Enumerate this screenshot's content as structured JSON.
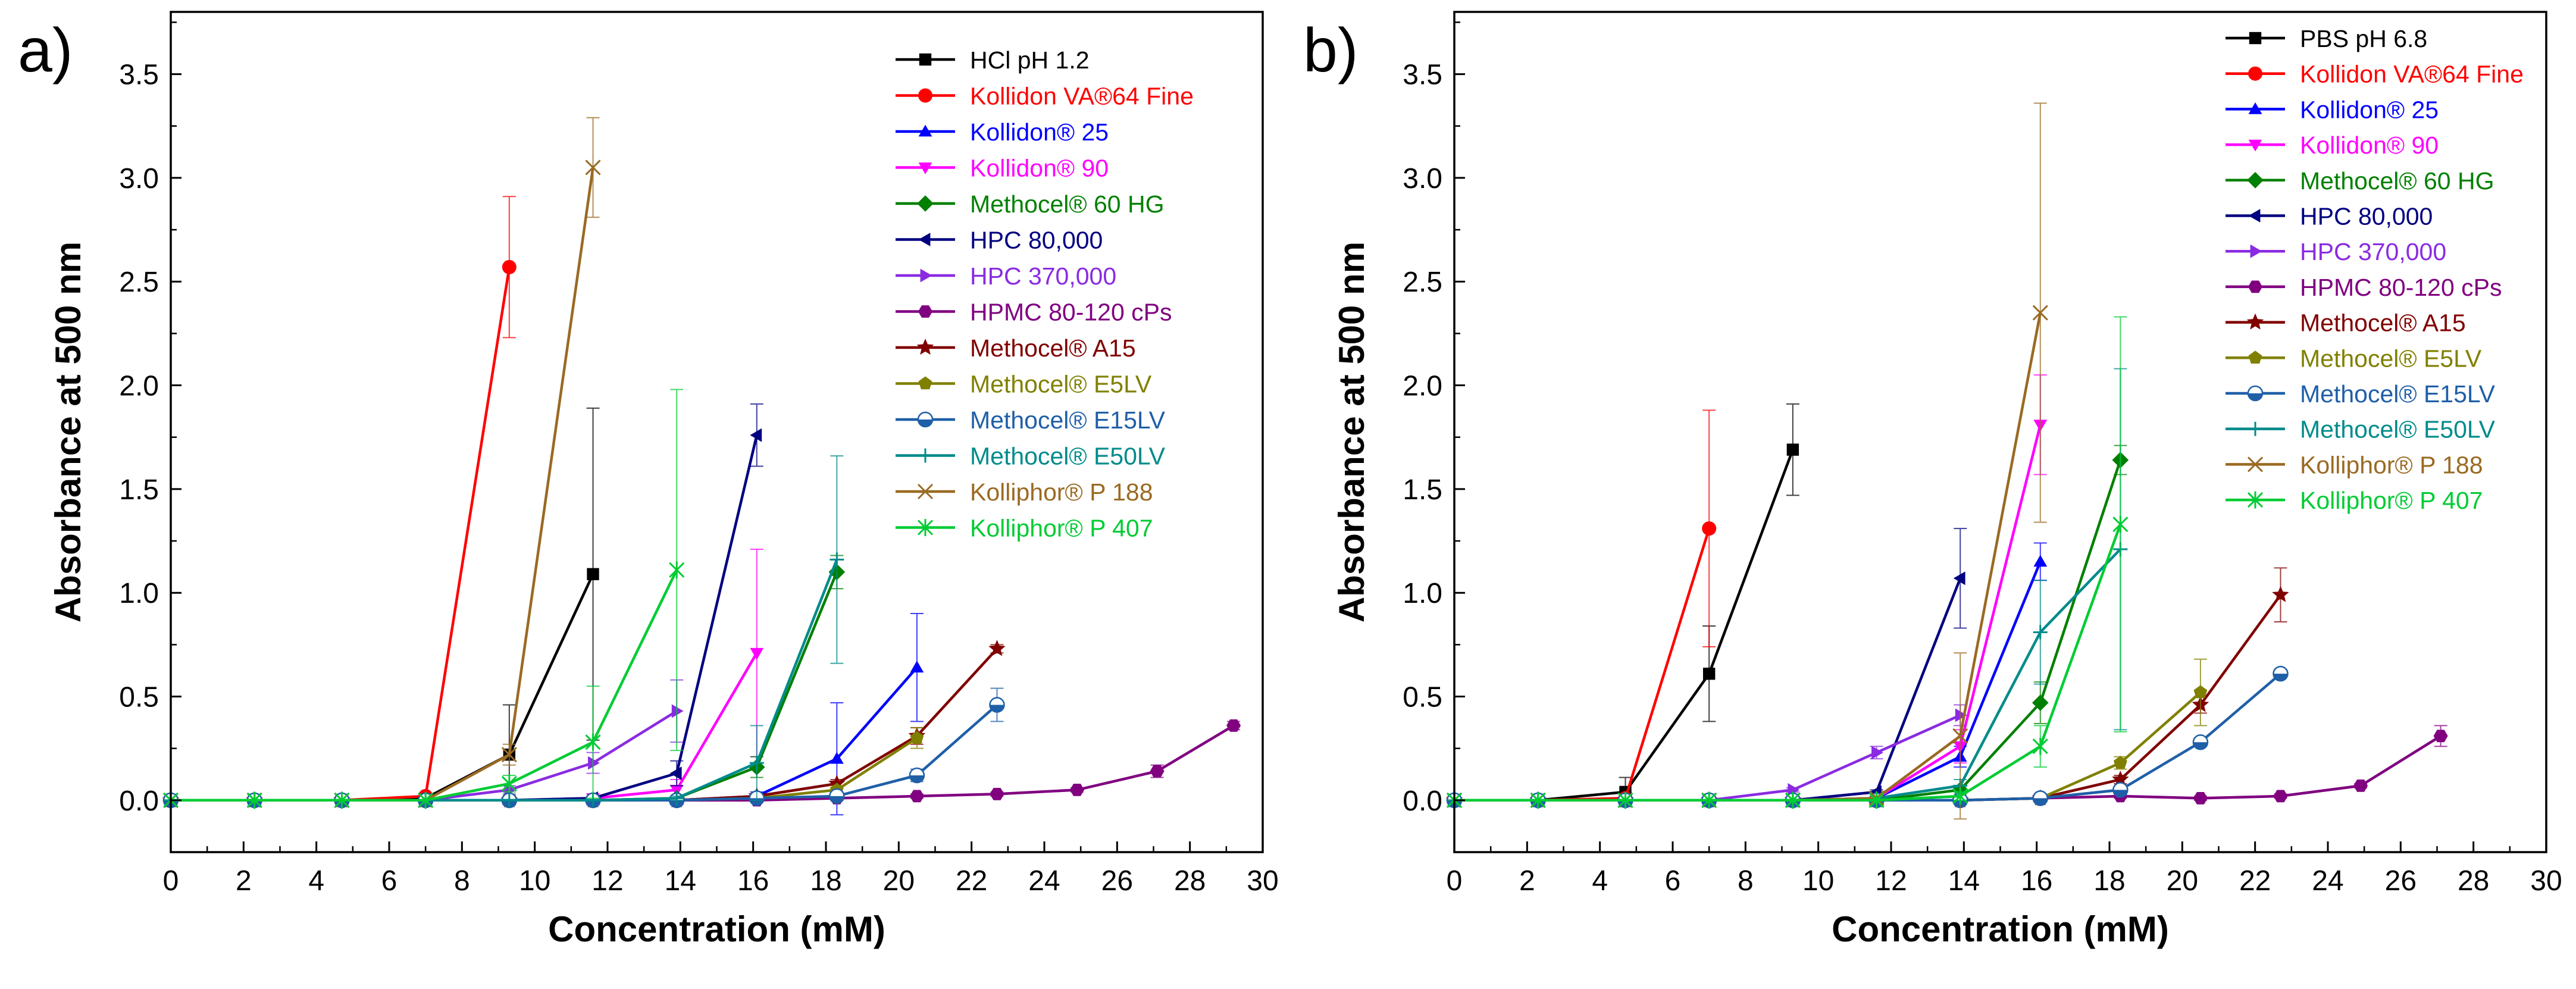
{
  "chart_data": [
    {
      "type": "line",
      "panel_label": "a)",
      "xlabel": "Concentration (mM)",
      "ylabel": "Absorbance at 500 nm",
      "xlim": [
        0,
        30
      ],
      "ylim": [
        -0.25,
        3.8
      ],
      "xticks": [
        0,
        2,
        4,
        6,
        8,
        10,
        12,
        14,
        16,
        18,
        20,
        22,
        24,
        26,
        28,
        30
      ],
      "yticks": [
        0.0,
        0.5,
        1.0,
        1.5,
        2.0,
        2.5,
        3.0,
        3.5
      ],
      "ytick_labels": [
        "0.0",
        "0.5",
        "1.0",
        "1.5",
        "2.0",
        "2.5",
        "3.0",
        "3.5"
      ],
      "grid": false,
      "legend_position": "top-right",
      "series": [
        {
          "name": "HCl pH 1.2",
          "color": "#000000",
          "marker": "square",
          "x": [
            0,
            2.3,
            4.7,
            7.0,
            9.3,
            11.6
          ],
          "y": [
            0,
            0,
            0,
            0.01,
            0.22,
            1.09
          ],
          "err": [
            0,
            0,
            0,
            0.01,
            0.24,
            0.8
          ]
        },
        {
          "name": "Kollidon VA®64 Fine",
          "color": "#ff0000",
          "marker": "circle",
          "x": [
            0,
            2.3,
            4.7,
            7.0,
            9.3
          ],
          "y": [
            0,
            0,
            0,
            0.02,
            2.57
          ],
          "err": [
            0,
            0,
            0,
            0.01,
            0.34
          ]
        },
        {
          "name": "Kollidon® 25",
          "color": "#0000ff",
          "marker": "triangle-up",
          "x": [
            0,
            2.3,
            4.7,
            7.0,
            9.3,
            11.6,
            13.9,
            16.1,
            18.3,
            20.5
          ],
          "y": [
            0,
            0,
            0,
            0,
            0,
            0,
            0,
            0.02,
            0.2,
            0.64
          ],
          "err": [
            0,
            0,
            0,
            0,
            0,
            0,
            0,
            0.02,
            0.27,
            0.26
          ]
        },
        {
          "name": "Kollidon® 90",
          "color": "#ff00ff",
          "marker": "triangle-down",
          "x": [
            0,
            2.3,
            4.7,
            7.0,
            9.3,
            11.6,
            13.9,
            16.1
          ],
          "y": [
            0,
            0,
            0,
            0,
            0,
            0.01,
            0.05,
            0.71
          ],
          "err": [
            0,
            0,
            0,
            0,
            0,
            0.01,
            0.05,
            0.5
          ]
        },
        {
          "name": "Methocel® 60 HG",
          "color": "#008000",
          "marker": "diamond",
          "x": [
            0,
            2.3,
            4.7,
            7.0,
            9.3,
            11.6,
            13.9,
            16.1,
            18.3
          ],
          "y": [
            0,
            0,
            0,
            0,
            0,
            0,
            0.01,
            0.16,
            1.1
          ],
          "err": [
            0,
            0,
            0,
            0,
            0,
            0,
            0.01,
            0.05,
            0.08
          ]
        },
        {
          "name": "HPC 80,000",
          "color": "#000080",
          "marker": "triangle-left",
          "x": [
            0,
            2.3,
            4.7,
            7.0,
            9.3,
            11.6,
            13.9,
            16.1
          ],
          "y": [
            0,
            0,
            0,
            0,
            0,
            0.01,
            0.13,
            1.76
          ],
          "err": [
            0,
            0,
            0,
            0,
            0,
            0.01,
            0.06,
            0.15
          ]
        },
        {
          "name": "HPC 370,000",
          "color": "#8a2be2",
          "marker": "triangle-right",
          "x": [
            0,
            2.3,
            4.7,
            7.0,
            9.3,
            11.6,
            13.9
          ],
          "y": [
            0,
            0,
            0,
            0,
            0.05,
            0.18,
            0.43
          ],
          "err": [
            0,
            0,
            0,
            0,
            0.02,
            0.05,
            0.15
          ]
        },
        {
          "name": "HPMC 80-120 cPs",
          "color": "#800080",
          "marker": "hexagon",
          "x": [
            0,
            2.3,
            4.7,
            7.0,
            9.3,
            11.6,
            13.9,
            16.1,
            18.3,
            20.5,
            22.7,
            24.9,
            27.1,
            29.2
          ],
          "y": [
            0,
            0,
            0,
            0,
            0,
            0,
            0,
            0,
            0.01,
            0.02,
            0.03,
            0.05,
            0.14,
            0.36
          ],
          "err": [
            0,
            0,
            0,
            0,
            0,
            0,
            0,
            0,
            0.01,
            0.01,
            0.01,
            0.01,
            0.03,
            0.02
          ]
        },
        {
          "name": "Methocel® A15",
          "color": "#800000",
          "marker": "star",
          "x": [
            0,
            2.3,
            4.7,
            7.0,
            9.3,
            11.6,
            13.9,
            16.1,
            18.3,
            20.5,
            22.7
          ],
          "y": [
            0,
            0,
            0,
            0,
            0,
            0,
            0,
            0.02,
            0.08,
            0.31,
            0.73
          ],
          "err": [
            0,
            0,
            0,
            0,
            0,
            0,
            0,
            0.01,
            0.02,
            0.04,
            0.02
          ]
        },
        {
          "name": "Methocel® E5LV",
          "color": "#808000",
          "marker": "pentagon",
          "x": [
            0,
            2.3,
            4.7,
            7.0,
            9.3,
            11.6,
            13.9,
            16.1,
            18.3,
            20.5
          ],
          "y": [
            0,
            0,
            0,
            0,
            0,
            0,
            0,
            0.01,
            0.05,
            0.3
          ],
          "err": [
            0,
            0,
            0,
            0,
            0,
            0,
            0,
            0.01,
            0.02,
            0.05
          ]
        },
        {
          "name": "Methocel® E15LV",
          "color": "#1f5fa8",
          "marker": "half-circle",
          "x": [
            0,
            2.3,
            4.7,
            7.0,
            9.3,
            11.6,
            13.9,
            16.1,
            18.3,
            20.5,
            22.7
          ],
          "y": [
            0,
            0,
            0,
            0,
            0,
            0,
            0,
            0.01,
            0.02,
            0.12,
            0.46
          ],
          "err": [
            0,
            0,
            0,
            0,
            0,
            0,
            0,
            0.01,
            0.01,
            0.03,
            0.08
          ]
        },
        {
          "name": "Methocel® E50LV",
          "color": "#008b8b",
          "marker": "plus",
          "x": [
            0,
            2.3,
            4.7,
            7.0,
            9.3,
            11.6,
            13.9,
            16.1,
            18.3
          ],
          "y": [
            0,
            0,
            0,
            0,
            0,
            0,
            0.01,
            0.18,
            1.16
          ],
          "err": [
            0,
            0,
            0,
            0,
            0,
            0,
            0.01,
            0.18,
            0.5
          ]
        },
        {
          "name": "Kolliphor® P 188",
          "color": "#9a6a22",
          "marker": "x",
          "x": [
            0,
            2.3,
            4.7,
            7.0,
            9.3,
            11.6
          ],
          "y": [
            0,
            0,
            0,
            0,
            0.22,
            3.05
          ],
          "err": [
            0,
            0,
            0,
            0,
            0.05,
            0.24
          ]
        },
        {
          "name": "Kolliphor® P 407",
          "color": "#00cc33",
          "marker": "asterisk",
          "x": [
            0,
            2.3,
            4.7,
            7.0,
            9.3,
            11.6,
            13.9
          ],
          "y": [
            0,
            0,
            0,
            0,
            0.08,
            0.28,
            1.11
          ],
          "err": [
            0,
            0,
            0,
            0,
            0.04,
            0.27,
            0.87
          ]
        }
      ]
    },
    {
      "type": "line",
      "panel_label": "b)",
      "xlabel": "Concentration (mM)",
      "ylabel": "Absorbance at 500 nm",
      "xlim": [
        0,
        30
      ],
      "ylim": [
        -0.25,
        3.8
      ],
      "xticks": [
        0,
        2,
        4,
        6,
        8,
        10,
        12,
        14,
        16,
        18,
        20,
        22,
        24,
        26,
        28,
        30
      ],
      "yticks": [
        0.0,
        0.5,
        1.0,
        1.5,
        2.0,
        2.5,
        3.0,
        3.5
      ],
      "ytick_labels": [
        "0.0",
        "0.5",
        "1.0",
        "1.5",
        "2.0",
        "2.5",
        "3.0",
        "3.5"
      ],
      "grid": false,
      "legend_position": "top-right",
      "series": [
        {
          "name": "PBS pH 6.8",
          "color": "#000000",
          "marker": "square",
          "x": [
            0,
            2.3,
            4.7,
            7.0,
            9.3
          ],
          "y": [
            0,
            0,
            0.04,
            0.61,
            1.69
          ],
          "err": [
            0,
            0,
            0.07,
            0.23,
            0.22
          ]
        },
        {
          "name": "Kollidon VA®64 Fine",
          "color": "#ff0000",
          "marker": "circle",
          "x": [
            0,
            2.3,
            4.7,
            7.0
          ],
          "y": [
            0,
            0,
            0.01,
            1.31
          ],
          "err": [
            0,
            0,
            0.01,
            0.57
          ]
        },
        {
          "name": "Kollidon® 25",
          "color": "#0000ff",
          "marker": "triangle-up",
          "x": [
            0,
            2.3,
            4.7,
            7.0,
            9.3,
            11.6,
            13.9,
            16.1
          ],
          "y": [
            0,
            0,
            0,
            0,
            0,
            0.01,
            0.21,
            1.15
          ],
          "err": [
            0,
            0,
            0,
            0,
            0,
            0.01,
            0.05,
            0.09
          ]
        },
        {
          "name": "Kollidon® 90",
          "color": "#ff00ff",
          "marker": "triangle-down",
          "x": [
            0,
            2.3,
            4.7,
            7.0,
            9.3,
            11.6,
            13.9,
            16.1
          ],
          "y": [
            0,
            0,
            0,
            0,
            0,
            0.01,
            0.26,
            1.81
          ],
          "err": [
            0,
            0,
            0,
            0,
            0,
            0.01,
            0.08,
            0.24
          ]
        },
        {
          "name": "Methocel® 60 HG",
          "color": "#008000",
          "marker": "diamond",
          "x": [
            0,
            2.3,
            4.7,
            7.0,
            9.3,
            11.6,
            13.9,
            16.1,
            18.3
          ],
          "y": [
            0,
            0,
            0,
            0,
            0,
            0,
            0.05,
            0.47,
            1.64
          ],
          "err": [
            0,
            0,
            0,
            0,
            0,
            0,
            0.02,
            0.1,
            0.07
          ]
        },
        {
          "name": "HPC 80,000",
          "color": "#000080",
          "marker": "triangle-left",
          "x": [
            0,
            2.3,
            4.7,
            7.0,
            9.3,
            11.6,
            13.9
          ],
          "y": [
            0,
            0,
            0,
            0,
            0,
            0.04,
            1.07
          ],
          "err": [
            0,
            0,
            0,
            0,
            0,
            0.01,
            0.24
          ]
        },
        {
          "name": "HPC 370,000",
          "color": "#8a2be2",
          "marker": "triangle-right",
          "x": [
            0,
            2.3,
            4.7,
            7.0,
            9.3,
            11.6,
            13.9
          ],
          "y": [
            0,
            0,
            0,
            0,
            0.05,
            0.23,
            0.41
          ],
          "err": [
            0,
            0,
            0,
            0,
            0.01,
            0.03,
            0.05
          ]
        },
        {
          "name": "HPMC 80-120 cPs",
          "color": "#800080",
          "marker": "hexagon",
          "x": [
            0,
            2.3,
            4.7,
            7.0,
            9.3,
            11.6,
            13.9,
            16.1,
            18.3,
            20.5,
            22.7,
            24.9,
            27.1
          ],
          "y": [
            0,
            0,
            0,
            0,
            0,
            0,
            0,
            0.01,
            0.02,
            0.01,
            0.02,
            0.07,
            0.31
          ],
          "err": [
            0,
            0,
            0,
            0,
            0,
            0,
            0,
            0.01,
            0.01,
            0.01,
            0.01,
            0.01,
            0.05
          ]
        },
        {
          "name": "Methocel® A15",
          "color": "#800000",
          "marker": "star",
          "x": [
            0,
            2.3,
            4.7,
            7.0,
            9.3,
            11.6,
            13.9,
            16.1,
            18.3,
            20.5,
            22.7
          ],
          "y": [
            0,
            0,
            0,
            0,
            0,
            0,
            0,
            0.01,
            0.1,
            0.46,
            0.99
          ],
          "err": [
            0,
            0,
            0,
            0,
            0,
            0,
            0,
            0.01,
            0.02,
            0.04,
            0.13
          ]
        },
        {
          "name": "Methocel® E5LV",
          "color": "#808000",
          "marker": "pentagon",
          "x": [
            0,
            2.3,
            4.7,
            7.0,
            9.3,
            11.6,
            13.9,
            16.1,
            18.3,
            20.5
          ],
          "y": [
            0,
            0,
            0,
            0,
            0,
            0,
            0,
            0.01,
            0.18,
            0.52
          ],
          "err": [
            0,
            0,
            0,
            0,
            0,
            0,
            0,
            0.01,
            0.03,
            0.16
          ]
        },
        {
          "name": "Methocel® E15LV",
          "color": "#1f5fa8",
          "marker": "half-circle",
          "x": [
            0,
            2.3,
            4.7,
            7.0,
            9.3,
            11.6,
            13.9,
            16.1,
            18.3,
            20.5,
            22.7
          ],
          "y": [
            0,
            0,
            0,
            0,
            0,
            0,
            0,
            0.01,
            0.05,
            0.28,
            0.61
          ],
          "err": [
            0,
            0,
            0,
            0,
            0,
            0,
            0,
            0.01,
            0.01,
            0.02,
            0.02
          ]
        },
        {
          "name": "Methocel® E50LV",
          "color": "#008b8b",
          "marker": "plus",
          "x": [
            0,
            2.3,
            4.7,
            7.0,
            9.3,
            11.6,
            13.9,
            16.1,
            18.3
          ],
          "y": [
            0,
            0,
            0,
            0,
            0,
            0.01,
            0.07,
            0.81,
            1.21
          ],
          "err": [
            0,
            0,
            0,
            0,
            0,
            0.01,
            0.03,
            0.25,
            0.87
          ]
        },
        {
          "name": "Kolliphor® P 188",
          "color": "#9a6a22",
          "marker": "x",
          "x": [
            0,
            2.3,
            4.7,
            7.0,
            9.3,
            11.6,
            13.9,
            16.1
          ],
          "y": [
            0,
            0,
            0,
            0,
            0,
            0.01,
            0.31,
            2.35
          ],
          "err": [
            0,
            0,
            0,
            0,
            0,
            0.01,
            0.4,
            1.01
          ]
        },
        {
          "name": "Kolliphor® P 407",
          "color": "#00cc33",
          "marker": "asterisk",
          "x": [
            0,
            2.3,
            4.7,
            7.0,
            9.3,
            11.6,
            13.9,
            16.1,
            18.3
          ],
          "y": [
            0,
            0,
            0,
            0,
            0,
            0,
            0.02,
            0.26,
            1.33
          ],
          "err": [
            0,
            0,
            0,
            0,
            0,
            0,
            0.02,
            0.1,
            1.0
          ]
        }
      ]
    }
  ]
}
